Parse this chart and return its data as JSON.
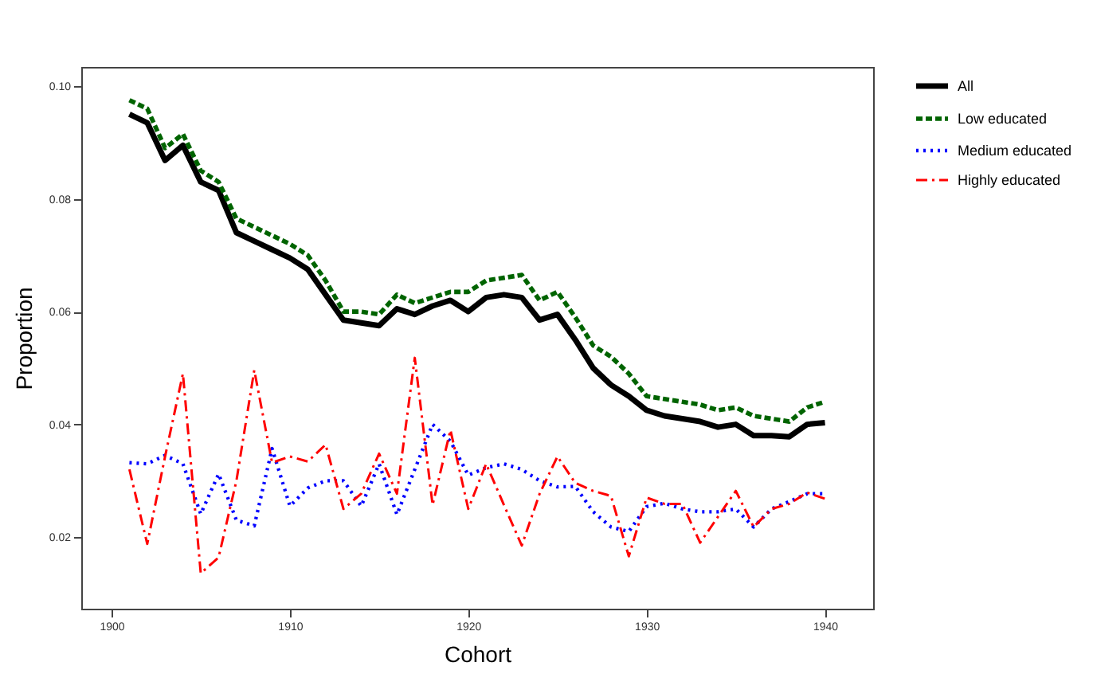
{
  "chart_data": {
    "type": "line",
    "xlabel": "Cohort",
    "ylabel": "Proportion",
    "x": [
      1901,
      1902,
      1903,
      1904,
      1905,
      1906,
      1907,
      1908,
      1909,
      1910,
      1911,
      1912,
      1913,
      1914,
      1915,
      1916,
      1917,
      1918,
      1919,
      1920,
      1921,
      1922,
      1923,
      1924,
      1925,
      1926,
      1927,
      1928,
      1929,
      1930,
      1931,
      1932,
      1933,
      1934,
      1935,
      1936,
      1937,
      1938,
      1939,
      1940
    ],
    "xlim": [
      1898.3,
      1942.7
    ],
    "xticks": [
      1900,
      1910,
      1920,
      1930,
      1940
    ],
    "ylim": [
      0.0073,
      0.1034
    ],
    "yticks": [
      {
        "value": 0.02,
        "label": "0.02"
      },
      {
        "value": 0.04,
        "label": "0.04"
      },
      {
        "value": 0.06,
        "label": "0.06"
      },
      {
        "value": 0.08,
        "label": "0.08"
      },
      {
        "value": 0.1,
        "label": "0.10"
      }
    ],
    "grid": false,
    "legend": "right",
    "series": [
      {
        "name": "All",
        "color": "#000000",
        "line_style": "solid",
        "values": [
          0.095,
          0.0935,
          0.0868,
          0.0895,
          0.083,
          0.0815,
          0.074,
          0.0725,
          0.071,
          0.0695,
          0.0675,
          0.063,
          0.0585,
          0.058,
          0.0575,
          0.0605,
          0.0595,
          0.061,
          0.062,
          0.06,
          0.0625,
          0.063,
          0.0625,
          0.0585,
          0.0595,
          0.055,
          0.05,
          0.047,
          0.045,
          0.0425,
          0.0415,
          0.041,
          0.0405,
          0.0395,
          0.04,
          0.038,
          0.038,
          0.0378,
          0.04,
          0.0403
        ]
      },
      {
        "name": "Low educated",
        "color": "#006400",
        "line_style": "dashed",
        "values": [
          0.0975,
          0.096,
          0.089,
          0.0915,
          0.085,
          0.083,
          0.0765,
          0.075,
          0.0735,
          0.072,
          0.07,
          0.0655,
          0.06,
          0.06,
          0.0595,
          0.063,
          0.0615,
          0.0625,
          0.0635,
          0.0635,
          0.0655,
          0.066,
          0.0665,
          0.062,
          0.0635,
          0.059,
          0.054,
          0.052,
          0.049,
          0.045,
          0.0445,
          0.044,
          0.0435,
          0.0425,
          0.043,
          0.0415,
          0.041,
          0.0405,
          0.043,
          0.044
        ]
      },
      {
        "name": "Medium educated",
        "color": "#0000ff",
        "line_style": "dotted",
        "values": [
          0.0332,
          0.033,
          0.0345,
          0.033,
          0.0241,
          0.0312,
          0.023,
          0.022,
          0.0357,
          0.0255,
          0.0287,
          0.03,
          0.03,
          0.0255,
          0.033,
          0.024,
          0.032,
          0.04,
          0.037,
          0.031,
          0.0323,
          0.033,
          0.032,
          0.03,
          0.0289,
          0.029,
          0.0245,
          0.0218,
          0.021,
          0.0254,
          0.026,
          0.025,
          0.0245,
          0.0245,
          0.025,
          0.0218,
          0.025,
          0.0263,
          0.0277,
          0.0277
        ]
      },
      {
        "name": "Highly educated",
        "color": "#ff0000",
        "line_style": "dashdot",
        "values": [
          0.032,
          0.0188,
          0.0343,
          0.049,
          0.0136,
          0.0164,
          0.03,
          0.0496,
          0.0332,
          0.0343,
          0.0334,
          0.0364,
          0.025,
          0.0277,
          0.0348,
          0.0277,
          0.0518,
          0.0257,
          0.039,
          0.025,
          0.033,
          0.0257,
          0.0185,
          0.0277,
          0.0343,
          0.0296,
          0.0282,
          0.0273,
          0.0166,
          0.027,
          0.0259,
          0.0259,
          0.019,
          0.0236,
          0.0282,
          0.0218,
          0.025,
          0.0259,
          0.0279,
          0.0268
        ]
      }
    ]
  }
}
